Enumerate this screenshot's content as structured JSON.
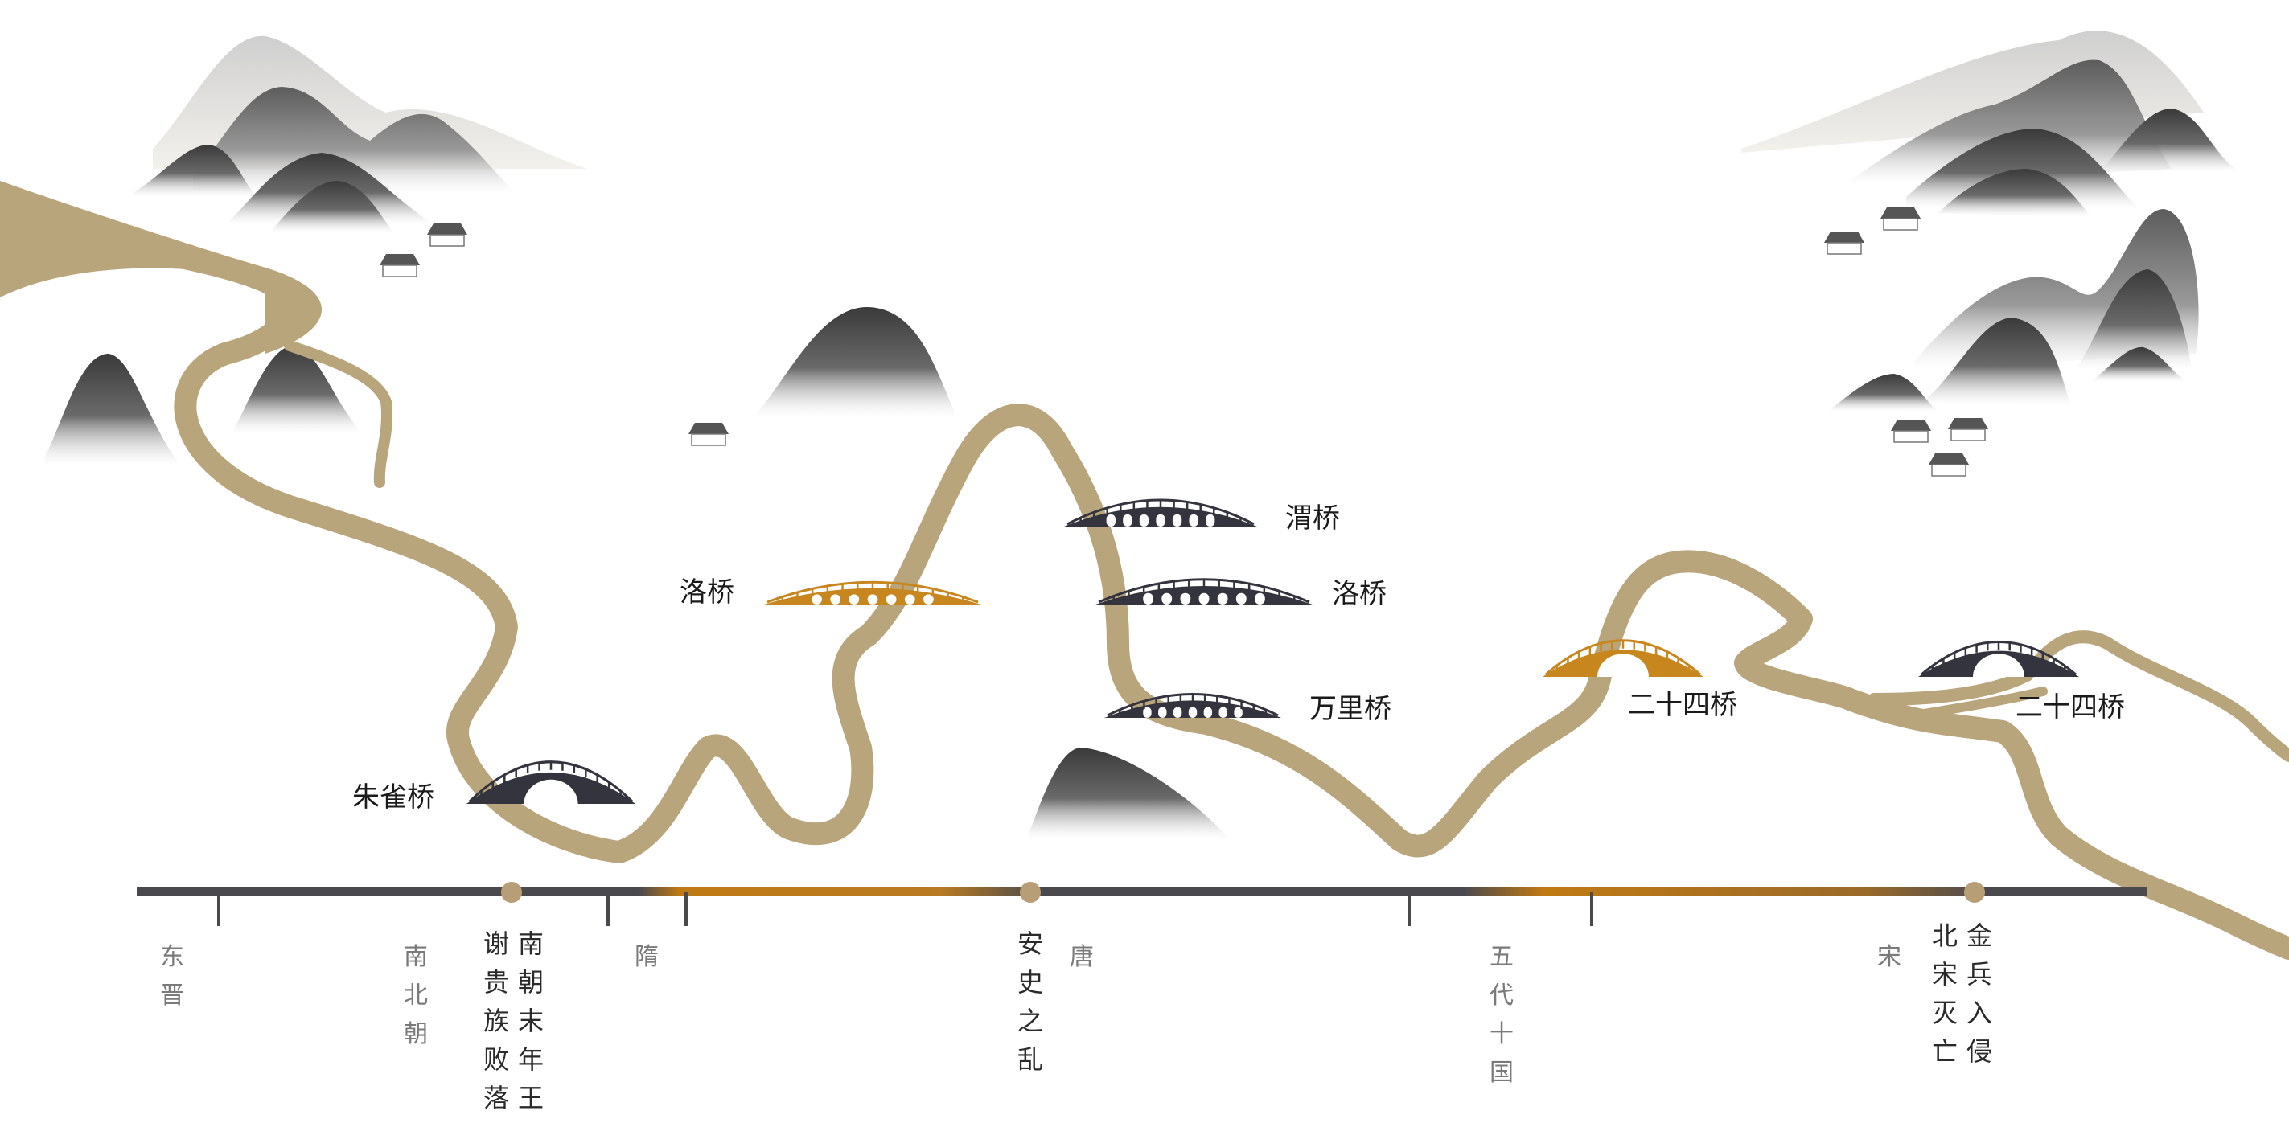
{
  "colors": {
    "river": "#b9a57c",
    "bridge_dark": "#34343e",
    "bridge_gold": "#c8861e",
    "axis": "#4a4a4e",
    "event_dot": "#b89e76",
    "era_text": "#7a7a7a"
  },
  "bridges": [
    {
      "id": "zhuque",
      "label": "朱雀桥",
      "style": "dark",
      "shape": "single-arch"
    },
    {
      "id": "luo-gold",
      "label": "洛桥",
      "style": "gold",
      "shape": "multi-arch"
    },
    {
      "id": "wei",
      "label": "渭桥",
      "style": "dark",
      "shape": "multi-arch"
    },
    {
      "id": "luo-dark",
      "label": "洛桥",
      "style": "dark",
      "shape": "multi-arch"
    },
    {
      "id": "wanli",
      "label": "万里桥",
      "style": "dark",
      "shape": "multi-arch"
    },
    {
      "id": "ershisi-gold",
      "label": "二十四桥",
      "style": "gold",
      "shape": "single-arch"
    },
    {
      "id": "ershisi-dark",
      "label": "二十四桥",
      "style": "dark",
      "shape": "single-arch"
    }
  ],
  "eras": [
    {
      "id": "dongjin",
      "label": "东晋"
    },
    {
      "id": "nanbeichao",
      "label": "南北朝"
    },
    {
      "id": "sui",
      "label": "隋"
    },
    {
      "id": "tang",
      "label": "唐"
    },
    {
      "id": "wudai",
      "label": "五代十国"
    },
    {
      "id": "song",
      "label": "宋"
    }
  ],
  "events": [
    {
      "id": "nanchao-moonian",
      "columns": [
        "谢贵族败落",
        "南朝末年王"
      ]
    },
    {
      "id": "anshi",
      "columns": [
        "安史之乱"
      ]
    },
    {
      "id": "jinbing",
      "columns": [
        "北宋灭亡",
        "金兵入侵"
      ]
    }
  ],
  "decor": {
    "mountain_icon": "ink-mountain-icon",
    "house_icon": "house-icon"
  }
}
